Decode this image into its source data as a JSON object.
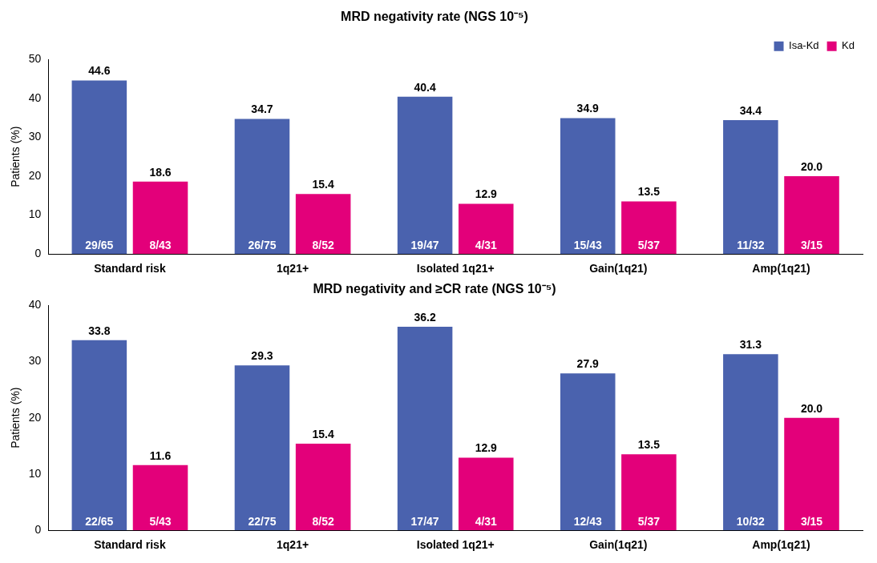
{
  "chart_data": [
    {
      "type": "bar",
      "title": "MRD negativity rate (NGS 10⁻⁵)",
      "ylabel": "Patients (%)",
      "categories": [
        "Standard risk",
        "1q21+",
        "Isolated 1q21+",
        "Gain(1q21)",
        "Amp(1q21)"
      ],
      "series": [
        {
          "name": "Isa-Kd",
          "color": "#4a62ae",
          "values": [
            44.6,
            34.7,
            40.4,
            34.9,
            34.4
          ],
          "value_labels": [
            "44.6",
            "34.7",
            "40.4",
            "34.9",
            "34.4"
          ]
        },
        {
          "name": "Kd",
          "color": "#e3007a",
          "values": [
            18.6,
            15.4,
            12.9,
            13.5,
            20.0
          ],
          "value_labels": [
            "18.6",
            "15.4",
            "12.9",
            "13.5",
            "20.0"
          ]
        }
      ],
      "annotations": [
        {
          "text": "29/65",
          "x": "Standard risk",
          "y": 0
        },
        {
          "text": "26/75",
          "x": "1q21+",
          "y": 0
        },
        {
          "text": "19/47",
          "x": "Isolated 1q21+",
          "y": 0
        },
        {
          "text": "15/43",
          "x": "Gain(1q21)",
          "y": 0
        },
        {
          "text": "11/32",
          "x": "Amp(1q21)",
          "y": 0
        },
        {
          "text": "8/43",
          "x": "Standard risk",
          "y": 0
        },
        {
          "text": "8/52",
          "x": "1q21+",
          "y": 0
        },
        {
          "text": "4/31",
          "x": "Isolated 1q21+",
          "y": 0
        },
        {
          "text": "5/37",
          "x": "Gain(1q21)",
          "y": 0
        },
        {
          "text": "3/15",
          "x": "Amp(1q21)",
          "y": 0
        }
      ],
      "ylim": [
        0,
        50
      ],
      "yticks": [
        0,
        10,
        20,
        30,
        40,
        50
      ],
      "legend": "top right"
    },
    {
      "type": "bar",
      "title": "MRD negativity and ≥CR rate (NGS 10⁻⁵)",
      "ylabel": "Patients (%)",
      "categories": [
        "Standard risk",
        "1q21+",
        "Isolated 1q21+",
        "Gain(1q21)",
        "Amp(1q21)"
      ],
      "series": [
        {
          "color": "#4a62ae",
          "values": [
            33.8,
            29.3,
            36.2,
            27.9,
            31.3
          ],
          "value_labels": [
            "33.8",
            "29.3",
            "36.2",
            "27.9",
            "31.3"
          ]
        },
        {
          "color": "#e3007a",
          "values": [
            11.6,
            15.4,
            12.9,
            13.5,
            20.0
          ],
          "value_labels": [
            "11.6",
            "15.4",
            "12.9",
            "13.5",
            "20.0"
          ]
        }
      ],
      "annotations": [
        {
          "text": "22/65",
          "x": "Standard risk",
          "y": 0
        },
        {
          "text": "22/75",
          "x": "1q21+",
          "y": 0
        },
        {
          "text": "17/47",
          "x": "Isolated 1q21+",
          "y": 0
        },
        {
          "text": "12/43",
          "x": "Gain(1q21)",
          "y": 0
        },
        {
          "text": "10/32",
          "x": "Amp(1q21)",
          "y": 0
        },
        {
          "text": "5/43",
          "x": "Standard risk",
          "y": 0
        },
        {
          "text": "8/52",
          "x": "1q21+",
          "y": 0
        },
        {
          "text": "4/31",
          "x": "Isolated 1q21+",
          "y": 0
        },
        {
          "text": "5/37",
          "x": "Gain(1q21)",
          "y": 0
        },
        {
          "text": "3/15",
          "x": "Amp(1q21)",
          "y": 0
        }
      ],
      "ylim": [
        0,
        40
      ],
      "yticks": [
        0,
        10,
        20,
        30,
        40
      ]
    }
  ]
}
